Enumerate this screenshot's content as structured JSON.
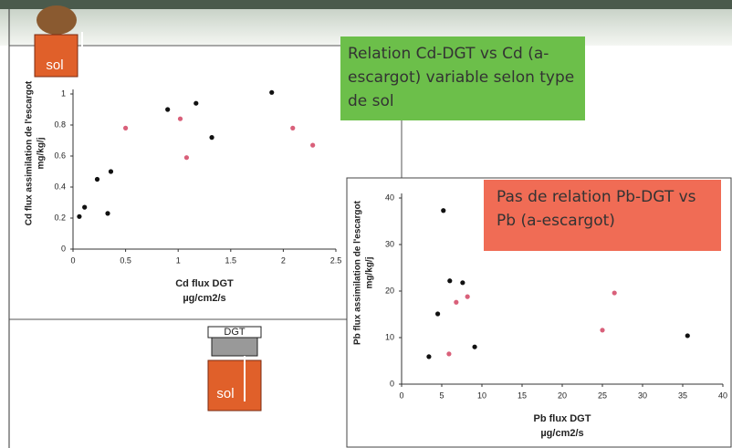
{
  "icons": [
    "sol",
    "DGT",
    "sol"
  ],
  "chart_data": [
    {
      "type": "scatter",
      "annotation": "Relation Cd-DGT vs Cd (a-escargot) variable selon type de sol",
      "xlabel": [
        "Cd flux DGT",
        "µg/cm2/s"
      ],
      "ylabel": [
        "Cd flux assimilation de l'escargot",
        "mg/kg/j"
      ],
      "xlim": [
        0,
        2.5
      ],
      "xticks": [
        0,
        0.5,
        1,
        1.5,
        2,
        2.5
      ],
      "ylim": [
        0,
        1
      ],
      "yticks": [
        0,
        0.2,
        0.4,
        0.6,
        0.8,
        1
      ],
      "series": [
        {
          "color": "#111111",
          "x": [
            0.06,
            0.11,
            0.33,
            0.23,
            0.36,
            0.9,
            1.17,
            1.32,
            1.89
          ],
          "values": [
            0.21,
            0.27,
            0.23,
            0.45,
            0.5,
            0.9,
            0.94,
            0.72,
            1.01
          ]
        },
        {
          "color": "#d9607a",
          "x": [
            0.5,
            1.02,
            1.08,
            2.09,
            2.28
          ],
          "values": [
            0.78,
            0.84,
            0.59,
            0.78,
            0.67
          ]
        }
      ]
    },
    {
      "type": "scatter",
      "annotation": "Pas de relation Pb-DGT vs Pb (a-escargot)",
      "xlabel": [
        "Pb flux DGT",
        "µg/cm2/s"
      ],
      "ylabel": [
        "Pb flux assimilation de l'escargot",
        "mg/kg/j"
      ],
      "xlim": [
        0,
        40
      ],
      "xticks": [
        0,
        5,
        10,
        15,
        20,
        25,
        30,
        35,
        40
      ],
      "ylim": [
        0,
        40
      ],
      "yticks": [
        0,
        10,
        20,
        30,
        40
      ],
      "series": [
        {
          "color": "#111111",
          "x": [
            3.4,
            5.2,
            6.0,
            4.5,
            7.6,
            9.1,
            35.6
          ],
          "values": [
            5.9,
            37.3,
            22.2,
            15.1,
            21.8,
            8.0,
            10.4
          ]
        },
        {
          "color": "#d9607a",
          "x": [
            5.9,
            6.8,
            8.2,
            25.0,
            26.5
          ],
          "values": [
            6.5,
            17.6,
            18.8,
            11.6,
            19.6
          ]
        }
      ]
    }
  ]
}
